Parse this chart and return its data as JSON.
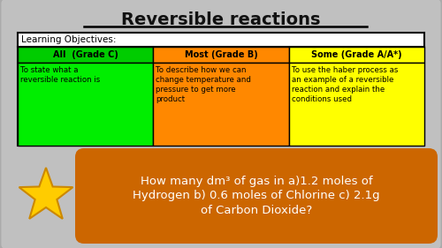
{
  "title": "Reversible reactions",
  "outer_bg": "#e8e4d8",
  "slide_bg_top": "#c8c8c8",
  "slide_bg_bottom": "#a8a8a8",
  "table_header": "Learning Objectives:",
  "col_headers": [
    "All  (Grade C)",
    "Most (Grade B)",
    "Some (Grade A/A*)"
  ],
  "col_header_colors": [
    "#00cc00",
    "#ff8800",
    "#ffff00"
  ],
  "col_content": [
    "To state what a\nreversible reaction is",
    "To describe how we can\nchange temperature and\npressure to get more\nproduct",
    "To use the haber process as\nan example of a reversible\nreaction and explain the\nconditions used"
  ],
  "col_content_colors": [
    "#00ee00",
    "#ff8800",
    "#ffff00"
  ],
  "question_bg": "#cc6600",
  "question_text": "How many dm³ of gas in a)1.2 moles of\nHydrogen b) 0.6 moles of Chlorine c) 2.1g\nof Carbon Dioxide?",
  "star_color": "#ffcc00",
  "star_outline": "#cc8800",
  "title_color": "#111111"
}
